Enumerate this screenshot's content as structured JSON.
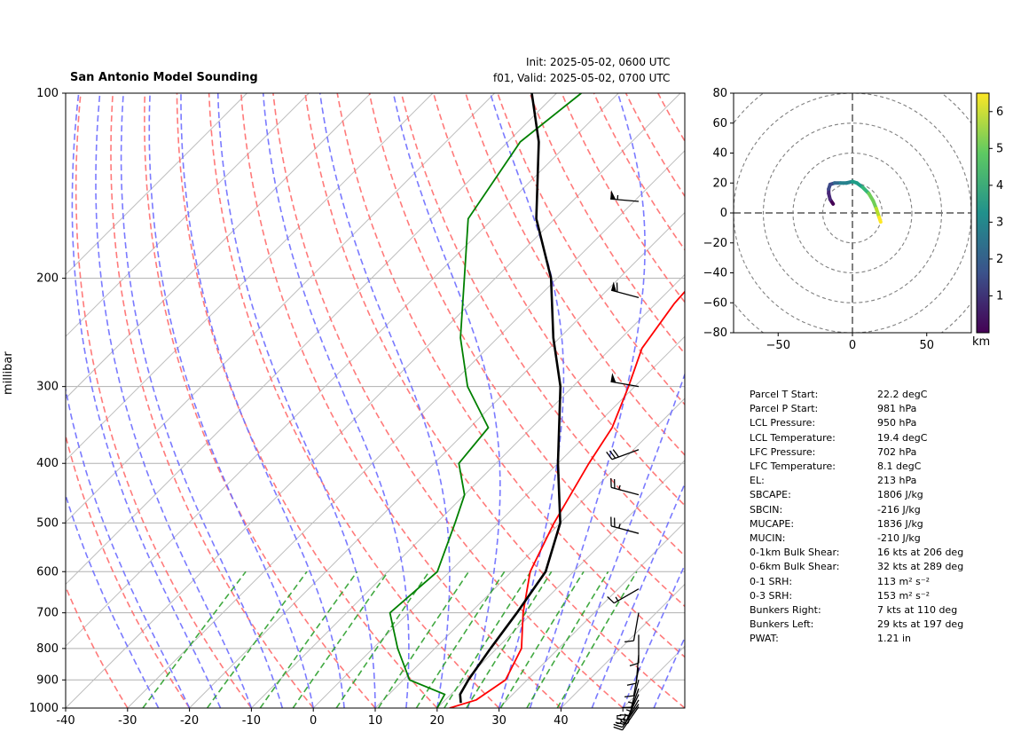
{
  "header": {
    "title": "San Antonio Model Sounding",
    "init": "Init: 2025-05-02, 0600 UTC",
    "valid": "f01, Valid: 2025-05-02, 0700 UTC"
  },
  "axes": {
    "ylabel": "millibar",
    "hodo_cbar_label": "km"
  },
  "colors": {
    "temperature": "#ff0000",
    "dewpoint": "#008000",
    "parcel": "#000000",
    "dry_adiabat": "#ff6b6b",
    "moist_adiabat": "#6b6bff",
    "mixing_ratio": "#2ca02c",
    "isotherm": "#bdbdbd"
  },
  "stats": [
    {
      "label": "Parcel T Start:",
      "value": "22.2 degC"
    },
    {
      "label": "Parcel P Start:",
      "value": "981 hPa"
    },
    {
      "label": "LCL Pressure:",
      "value": "950 hPa"
    },
    {
      "label": "LCL Temperature:",
      "value": "19.4 degC"
    },
    {
      "label": "LFC Pressure:",
      "value": "702 hPa"
    },
    {
      "label": "LFC Temperature:",
      "value": "8.1 degC"
    },
    {
      "label": "EL:",
      "value": "213 hPa"
    },
    {
      "label": "SBCAPE:",
      "value": "1806 J/kg"
    },
    {
      "label": "SBCIN:",
      "value": "-216 J/kg"
    },
    {
      "label": "MUCAPE:",
      "value": "1836 J/kg"
    },
    {
      "label": "MUCIN:",
      "value": "-210 J/kg"
    },
    {
      "label": "0-1km Bulk Shear:",
      "value": "16 kts at 206 deg"
    },
    {
      "label": "0-6km Bulk Shear:",
      "value": "32 kts at 289 deg"
    },
    {
      "label": "0-1 SRH:",
      "value": "113 m² s⁻²"
    },
    {
      "label": "0-3 SRH:",
      "value": "153 m² s⁻²"
    },
    {
      "label": "Bunkers Right:",
      "value": "7 kts at 110 deg"
    },
    {
      "label": "Bunkers Left:",
      "value": "29 kts at 197 deg"
    },
    {
      "label": "PWAT:",
      "value": "1.21 in"
    }
  ],
  "chart_data": [
    {
      "type": "line",
      "subtype": "skew-t",
      "ylabel": "millibar",
      "xlim": [
        -40,
        60
      ],
      "ylim": [
        1000,
        100
      ],
      "y_scale": "log",
      "xticks": [
        -40,
        -30,
        -20,
        -10,
        0,
        10,
        20,
        30,
        40,
        50
      ],
      "yticks": [
        1000,
        900,
        800,
        700,
        600,
        500,
        400,
        300,
        200,
        100
      ],
      "series": [
        {
          "key": "temperature",
          "points": [
            [
              1000,
              22
            ],
            [
              970,
              25
            ],
            [
              900,
              26.5
            ],
            [
              800,
              24
            ],
            [
              700,
              18.5
            ],
            [
              600,
              13
            ],
            [
              500,
              9
            ],
            [
              400,
              5
            ],
            [
              350,
              3
            ],
            [
              300,
              -1
            ],
            [
              260,
              -5
            ],
            [
              220,
              -7
            ],
            [
              180,
              -8
            ],
            [
              150,
              -7
            ],
            [
              120,
              -6
            ],
            [
              100,
              -6
            ]
          ]
        },
        {
          "key": "dewpoint",
          "points": [
            [
              1000,
              20
            ],
            [
              950,
              19
            ],
            [
              900,
              11
            ],
            [
              800,
              4
            ],
            [
              700,
              -3
            ],
            [
              600,
              -2
            ],
            [
              500,
              -7
            ],
            [
              450,
              -10
            ],
            [
              400,
              -16
            ],
            [
              350,
              -17
            ],
            [
              300,
              -27
            ],
            [
              250,
              -36
            ],
            [
              200,
              -45
            ],
            [
              160,
              -54
            ],
            [
              120,
              -58
            ],
            [
              100,
              -56
            ]
          ]
        },
        {
          "key": "parcel",
          "points": [
            [
              981,
              23
            ],
            [
              950,
              21.5
            ],
            [
              900,
              20.5
            ],
            [
              800,
              19
            ],
            [
              700,
              17.5
            ],
            [
              600,
              15.5
            ],
            [
              500,
              10
            ],
            [
              400,
              0
            ],
            [
              300,
              -12
            ],
            [
              250,
              -21
            ],
            [
              200,
              -31
            ],
            [
              160,
              -43
            ],
            [
              120,
              -55
            ],
            [
              100,
              -64
            ]
          ]
        }
      ],
      "wind_barbs": [
        {
          "p": 150,
          "speed_kt": 55,
          "dir_deg": 275
        },
        {
          "p": 215,
          "speed_kt": 60,
          "dir_deg": 285
        },
        {
          "p": 300,
          "speed_kt": 50,
          "dir_deg": 280
        },
        {
          "p": 380,
          "speed_kt": 30,
          "dir_deg": 250
        },
        {
          "p": 450,
          "speed_kt": 25,
          "dir_deg": 285
        },
        {
          "p": 520,
          "speed_kt": 25,
          "dir_deg": 285
        },
        {
          "p": 640,
          "speed_kt": 15,
          "dir_deg": 240
        },
        {
          "p": 700,
          "speed_kt": 10,
          "dir_deg": 190
        },
        {
          "p": 760,
          "speed_kt": 10,
          "dir_deg": 180
        },
        {
          "p": 820,
          "speed_kt": 10,
          "dir_deg": 185
        },
        {
          "p": 860,
          "speed_kt": 10,
          "dir_deg": 190
        },
        {
          "p": 900,
          "speed_kt": 15,
          "dir_deg": 195
        },
        {
          "p": 930,
          "speed_kt": 15,
          "dir_deg": 200
        },
        {
          "p": 950,
          "speed_kt": 15,
          "dir_deg": 205
        },
        {
          "p": 970,
          "speed_kt": 15,
          "dir_deg": 210
        },
        {
          "p": 985,
          "speed_kt": 15,
          "dir_deg": 215
        },
        {
          "p": 995,
          "speed_kt": 10,
          "dir_deg": 215
        }
      ]
    },
    {
      "type": "line",
      "subtype": "hodograph",
      "xlim": [
        -80,
        80
      ],
      "ylim": [
        -80,
        80
      ],
      "xticks": [
        -50,
        0,
        50
      ],
      "yticks": [
        -80,
        -60,
        -40,
        -20,
        0,
        20,
        40,
        60,
        80
      ],
      "ring_step": 20,
      "colorbar": {
        "label": "km",
        "ticks": [
          1,
          2,
          3,
          4,
          5,
          6
        ],
        "range": [
          0,
          6.5
        ]
      },
      "points": [
        [
          -13,
          6
        ],
        [
          -15,
          9
        ],
        [
          -16,
          13
        ],
        [
          -16,
          16
        ],
        [
          -15,
          19
        ],
        [
          -12,
          20
        ],
        [
          -8,
          20
        ],
        [
          -4,
          20
        ],
        [
          0,
          21
        ],
        [
          3,
          20
        ],
        [
          7,
          17
        ],
        [
          11,
          13
        ],
        [
          14,
          8
        ],
        [
          16,
          3
        ],
        [
          17,
          0
        ],
        [
          18,
          -3
        ],
        [
          19,
          -6
        ]
      ]
    }
  ]
}
